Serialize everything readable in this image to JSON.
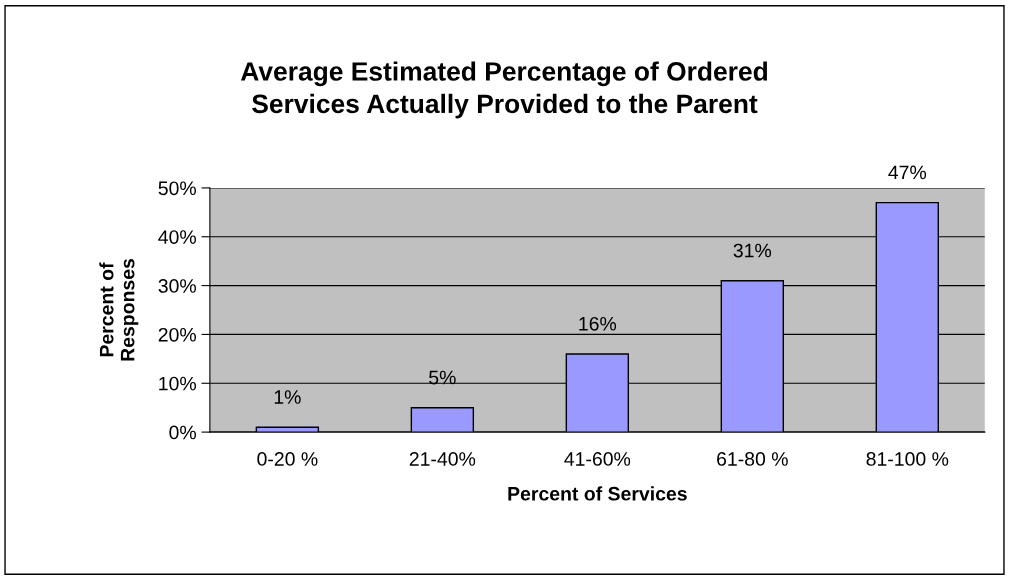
{
  "chart_data": {
    "type": "bar",
    "title": "Average Estimated Percentage of Ordered\nServices Actually Provided to the Parent",
    "xlabel": "Percent of Services",
    "ylabel": "Percent of\nResponses",
    "categories": [
      "0-20 %",
      "21-40%",
      "41-60%",
      "61-80 %",
      "81-100 %"
    ],
    "values": [
      1,
      5,
      16,
      31,
      47
    ],
    "color": "#9999ff",
    "value_labels": [
      "1%",
      "5%",
      "16%",
      "31%",
      "47%"
    ],
    "ylim": [
      0,
      50
    ],
    "yticks": [
      {
        "value": 0,
        "label": "0%"
      },
      {
        "value": 10,
        "label": "10%"
      },
      {
        "value": 20,
        "label": "20%"
      },
      {
        "value": 30,
        "label": "30%"
      },
      {
        "value": 40,
        "label": "40%"
      },
      {
        "value": 50,
        "label": "50%"
      }
    ],
    "grid": "y",
    "legend": false
  }
}
